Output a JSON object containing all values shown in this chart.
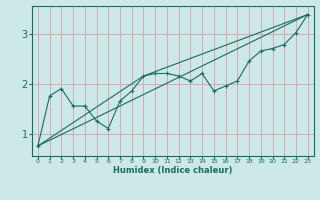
{
  "xlabel": "Humidex (Indice chaleur)",
  "ylabel": "",
  "bg_color": "#cce8e8",
  "grid_color": "#d8a0a0",
  "line_color": "#1a6b60",
  "xlim": [
    -0.5,
    23.5
  ],
  "ylim": [
    0.55,
    3.55
  ],
  "yticks": [
    1,
    2,
    3
  ],
  "xticks": [
    0,
    1,
    2,
    3,
    4,
    5,
    6,
    7,
    8,
    9,
    10,
    11,
    12,
    13,
    14,
    15,
    16,
    17,
    18,
    19,
    20,
    21,
    22,
    23
  ],
  "line1_x": [
    0,
    1,
    2,
    3,
    4,
    5,
    6,
    7,
    8,
    9,
    10,
    11,
    12,
    13,
    14,
    15,
    16,
    17,
    18,
    19,
    20,
    21,
    22,
    23
  ],
  "line1_y": [
    0.75,
    1.75,
    1.9,
    1.55,
    1.55,
    1.25,
    1.1,
    1.65,
    1.85,
    2.15,
    2.2,
    2.2,
    2.15,
    2.05,
    2.2,
    1.85,
    1.95,
    2.05,
    2.45,
    2.65,
    2.7,
    2.78,
    3.02,
    3.38
  ],
  "line2_x": [
    0,
    23
  ],
  "line2_y": [
    0.75,
    3.38
  ],
  "line3_x": [
    0,
    9,
    23
  ],
  "line3_y": [
    0.75,
    2.15,
    3.38
  ]
}
